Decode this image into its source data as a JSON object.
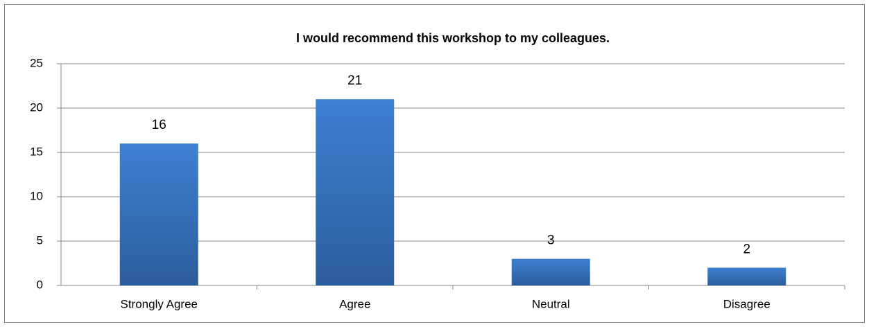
{
  "chart_data": {
    "type": "bar",
    "title": "I would recommend this workshop to my colleagues.",
    "categories": [
      "Strongly Agree",
      "Agree",
      "Neutral",
      "Disagree"
    ],
    "values": [
      16,
      21,
      3,
      2
    ],
    "color": "#3a78c9",
    "ylim": [
      0,
      25
    ],
    "yticks": [
      0,
      5,
      10,
      15,
      20,
      25
    ],
    "grid": true
  }
}
